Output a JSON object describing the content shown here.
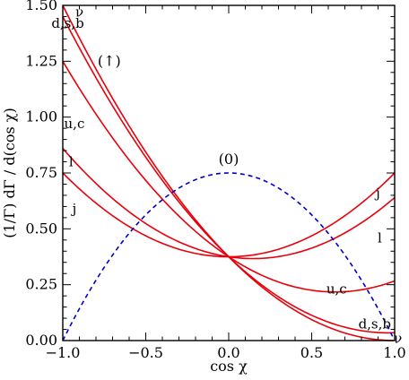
{
  "chart_data": {
    "type": "line",
    "xlabel": "cos χ",
    "ylabel": "(1/Γ) dΓ / d(cos χ)",
    "xlim": [
      -1.0,
      1.0
    ],
    "ylim": [
      0.0,
      1.5
    ],
    "grid": false,
    "x_ticks": [
      {
        "value": -1.0,
        "label": "−1.0"
      },
      {
        "value": -0.5,
        "label": "−0.5"
      },
      {
        "value": 0.0,
        "label": "0.0"
      },
      {
        "value": 0.5,
        "label": "0.5"
      },
      {
        "value": 1.0,
        "label": "1.0"
      }
    ],
    "y_ticks": [
      {
        "value": 0.0,
        "label": "0.00"
      },
      {
        "value": 0.25,
        "label": "0.25"
      },
      {
        "value": 0.5,
        "label": "0.50"
      },
      {
        "value": 0.75,
        "label": "0.75"
      },
      {
        "value": 1.0,
        "label": "1.00"
      },
      {
        "value": 1.25,
        "label": "1.25"
      },
      {
        "value": 1.5,
        "label": "1.50"
      }
    ],
    "group_labels": [
      {
        "text": "(↑)",
        "color": "#e8000b"
      },
      {
        "text": "(0)",
        "color": "#0000cc"
      }
    ],
    "series": [
      {
        "name": "ν",
        "group": "up",
        "color": "#e8000b",
        "style": "solid",
        "x": [
          -1.0,
          -0.5,
          0.0,
          0.5,
          1.0
        ],
        "values": [
          1.5,
          0.844,
          0.375,
          0.094,
          0.0
        ]
      },
      {
        "name": "d,s,b",
        "group": "up",
        "color": "#e8000b",
        "style": "solid",
        "x": [
          -1.0,
          -0.5,
          0.0,
          0.5,
          1.0
        ],
        "values": [
          1.45,
          0.82,
          0.375,
          0.113,
          0.035
        ]
      },
      {
        "name": "u,c",
        "group": "up",
        "color": "#e8000b",
        "style": "solid",
        "x": [
          -1.0,
          -0.5,
          0.0,
          0.5,
          1.0
        ],
        "values": [
          1.25,
          0.717,
          0.375,
          0.225,
          0.267
        ]
      },
      {
        "name": "l",
        "group": "up",
        "color": "#e8000b",
        "style": "solid",
        "x": [
          -1.0,
          -0.5,
          0.0,
          0.5,
          1.0
        ],
        "values": [
          0.86,
          0.544,
          0.375,
          0.352,
          0.64
        ]
      },
      {
        "name": "j",
        "group": "up",
        "color": "#e8000b",
        "style": "solid",
        "x": [
          -1.0,
          -0.5,
          0.0,
          0.5,
          1.0
        ],
        "values": [
          0.75,
          0.49,
          0.375,
          0.405,
          0.75
        ]
      },
      {
        "name": "",
        "group": "zero",
        "color": "#0000cc",
        "style": "dashed",
        "x": [
          -1.0,
          -0.5,
          0.0,
          0.5,
          1.0
        ],
        "values": [
          0.0,
          0.5625,
          0.75,
          0.5625,
          0.0
        ]
      }
    ],
    "curve_labels": [
      {
        "text": "ν",
        "x": -0.9,
        "y": 1.47
      },
      {
        "text": "d,s,b",
        "x": -0.97,
        "y": 1.42
      },
      {
        "text": "u,c",
        "x": -0.93,
        "y": 0.97
      },
      {
        "text": "l",
        "x": -0.95,
        "y": 0.8
      },
      {
        "text": "j",
        "x": -0.93,
        "y": 0.59
      },
      {
        "text": "j",
        "x": 0.9,
        "y": 0.66
      },
      {
        "text": "l",
        "x": 0.91,
        "y": 0.46
      },
      {
        "text": "u,c",
        "x": 0.65,
        "y": 0.23
      },
      {
        "text": "d,s,b",
        "x": 0.88,
        "y": 0.075
      },
      {
        "text": "ν",
        "x": 1.02,
        "y": 0.01
      }
    ]
  }
}
